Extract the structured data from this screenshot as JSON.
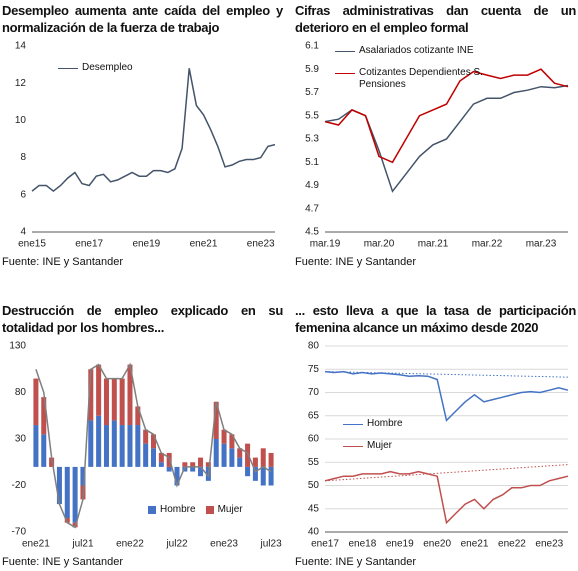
{
  "chart_data": [
    {
      "type": "line",
      "title": "Desempleo aumenta ante caída del empleo y normalización de la fuerza de trabajo",
      "source": "Fuente: INE y Santander",
      "categories": [
        "ene15",
        null,
        null,
        null,
        null,
        null,
        null,
        null,
        "ene17",
        null,
        null,
        null,
        null,
        null,
        null,
        null,
        "ene19",
        null,
        null,
        null,
        null,
        null,
        null,
        null,
        "ene21",
        null,
        null,
        null,
        null,
        null,
        null,
        null,
        "ene23",
        null,
        null
      ],
      "series": [
        {
          "name": "Desempleo",
          "color": "#44546a",
          "values": [
            6.2,
            6.5,
            6.5,
            6.2,
            6.5,
            6.9,
            7.2,
            6.6,
            6.5,
            7.0,
            7.1,
            6.7,
            6.8,
            7.0,
            7.2,
            7.0,
            7.0,
            7.3,
            7.3,
            7.2,
            7.4,
            8.5,
            12.8,
            10.8,
            10.3,
            9.5,
            8.6,
            7.5,
            7.6,
            7.8,
            7.9,
            7.9,
            8.0,
            8.6,
            8.7
          ]
        }
      ],
      "ylim": [
        4,
        14
      ],
      "yticks": [
        4,
        6,
        8,
        10,
        12,
        14
      ],
      "grid": false,
      "legend": "upper center"
    },
    {
      "type": "line",
      "title": "Cifras administrativas dan cuenta de un deterioro en el empleo formal",
      "source": "Fuente: INE y Santander",
      "categories": [
        "mar.19",
        null,
        null,
        null,
        "mar.20",
        null,
        null,
        null,
        "mar.21",
        null,
        null,
        null,
        "mar.22",
        null,
        null,
        null,
        "mar.23",
        null,
        null
      ],
      "series": [
        {
          "name": "Asalariados cotizante INE",
          "color": "#44546a",
          "values": [
            5.45,
            5.47,
            5.55,
            5.5,
            5.2,
            4.85,
            5.0,
            5.15,
            5.25,
            5.3,
            5.45,
            5.6,
            5.65,
            5.65,
            5.7,
            5.72,
            5.75,
            5.74,
            5.76
          ]
        },
        {
          "name": "Cotizantes Dependientes S. Pensiones",
          "color": "#c00000",
          "values": [
            5.45,
            5.42,
            5.55,
            5.5,
            5.15,
            5.1,
            5.3,
            5.5,
            5.55,
            5.6,
            5.8,
            5.88,
            5.85,
            5.82,
            5.85,
            5.85,
            5.9,
            5.78,
            5.75
          ]
        }
      ],
      "ylim": [
        4.5,
        6.1
      ],
      "yticks": [
        4.5,
        4.7,
        4.9,
        5.1,
        5.3,
        5.5,
        5.7,
        5.9,
        6.1
      ],
      "grid": false,
      "legend": "upper left"
    },
    {
      "type": "bar",
      "title": "Destrucción de empleo explicado en su totalidad por los hombres...",
      "source": "Fuente: INE y Santander",
      "categories": [
        "ene21",
        null,
        null,
        null,
        null,
        null,
        "jul21",
        null,
        null,
        null,
        null,
        null,
        "ene22",
        null,
        null,
        null,
        null,
        null,
        "jul22",
        null,
        null,
        null,
        null,
        null,
        "ene23",
        null,
        null,
        null,
        null,
        null,
        "jul23"
      ],
      "series": [
        {
          "name": "Hombre",
          "color": "#4472c4",
          "values": [
            45,
            35,
            0,
            -40,
            -55,
            -60,
            -20,
            50,
            55,
            45,
            50,
            45,
            45,
            45,
            25,
            20,
            5,
            -5,
            -20,
            -5,
            -5,
            -10,
            -15,
            30,
            25,
            20,
            10,
            -10,
            -15,
            -20,
            -20
          ]
        },
        {
          "name": "Mujer",
          "color": "#c0504d",
          "values": [
            50,
            40,
            10,
            0,
            -5,
            -5,
            -15,
            55,
            55,
            50,
            45,
            50,
            65,
            20,
            15,
            15,
            10,
            15,
            0,
            5,
            5,
            10,
            5,
            40,
            15,
            15,
            10,
            25,
            10,
            20,
            15
          ]
        },
        {
          "type": "line",
          "color": "#7f7f7f",
          "values": [
            105,
            80,
            10,
            -40,
            -60,
            -65,
            -35,
            105,
            110,
            95,
            95,
            95,
            110,
            65,
            40,
            35,
            15,
            10,
            -20,
            0,
            0,
            0,
            -10,
            70,
            40,
            35,
            20,
            15,
            -5,
            0,
            -5
          ]
        }
      ],
      "ylim": [
        -70,
        130
      ],
      "yticks": [
        -70,
        -20,
        30,
        80,
        130
      ],
      "grid": false,
      "legend": "lower right"
    },
    {
      "type": "line",
      "title": "... esto lleva a que la tasa de participación femenina alcance un máximo desde 2020",
      "source": "Fuente: INE y Santander",
      "categories": [
        "ene17",
        null,
        null,
        null,
        "ene18",
        null,
        null,
        null,
        "ene19",
        null,
        null,
        null,
        "ene20",
        null,
        null,
        null,
        "ene21",
        null,
        null,
        null,
        "ene22",
        null,
        null,
        null,
        "ene23",
        null,
        null
      ],
      "series": [
        {
          "name": "Hombre",
          "color": "#4472c4",
          "values": [
            74.5,
            74.3,
            74.5,
            74,
            74.3,
            74,
            74.2,
            74,
            73.8,
            73.5,
            73.6,
            73.5,
            72.8,
            64,
            66,
            68,
            69.5,
            68,
            68.5,
            69,
            69.5,
            70,
            70.2,
            70,
            70.5,
            71,
            70.5
          ],
          "trend": [
            74.5,
            73.3
          ]
        },
        {
          "name": "Mujer",
          "color": "#c0504d",
          "values": [
            51,
            51.5,
            52,
            52,
            52.5,
            52.5,
            52.5,
            53,
            52.5,
            52.5,
            53,
            52.5,
            52,
            42,
            44,
            46,
            47,
            45,
            47,
            48,
            49.5,
            49.5,
            50,
            50,
            51,
            51.5,
            52
          ],
          "trend": [
            51,
            54.5
          ]
        }
      ],
      "ylim": [
        40,
        80
      ],
      "yticks": [
        40,
        45,
        50,
        55,
        60,
        65,
        70,
        75,
        80
      ],
      "grid": true,
      "legend": "center left"
    }
  ]
}
